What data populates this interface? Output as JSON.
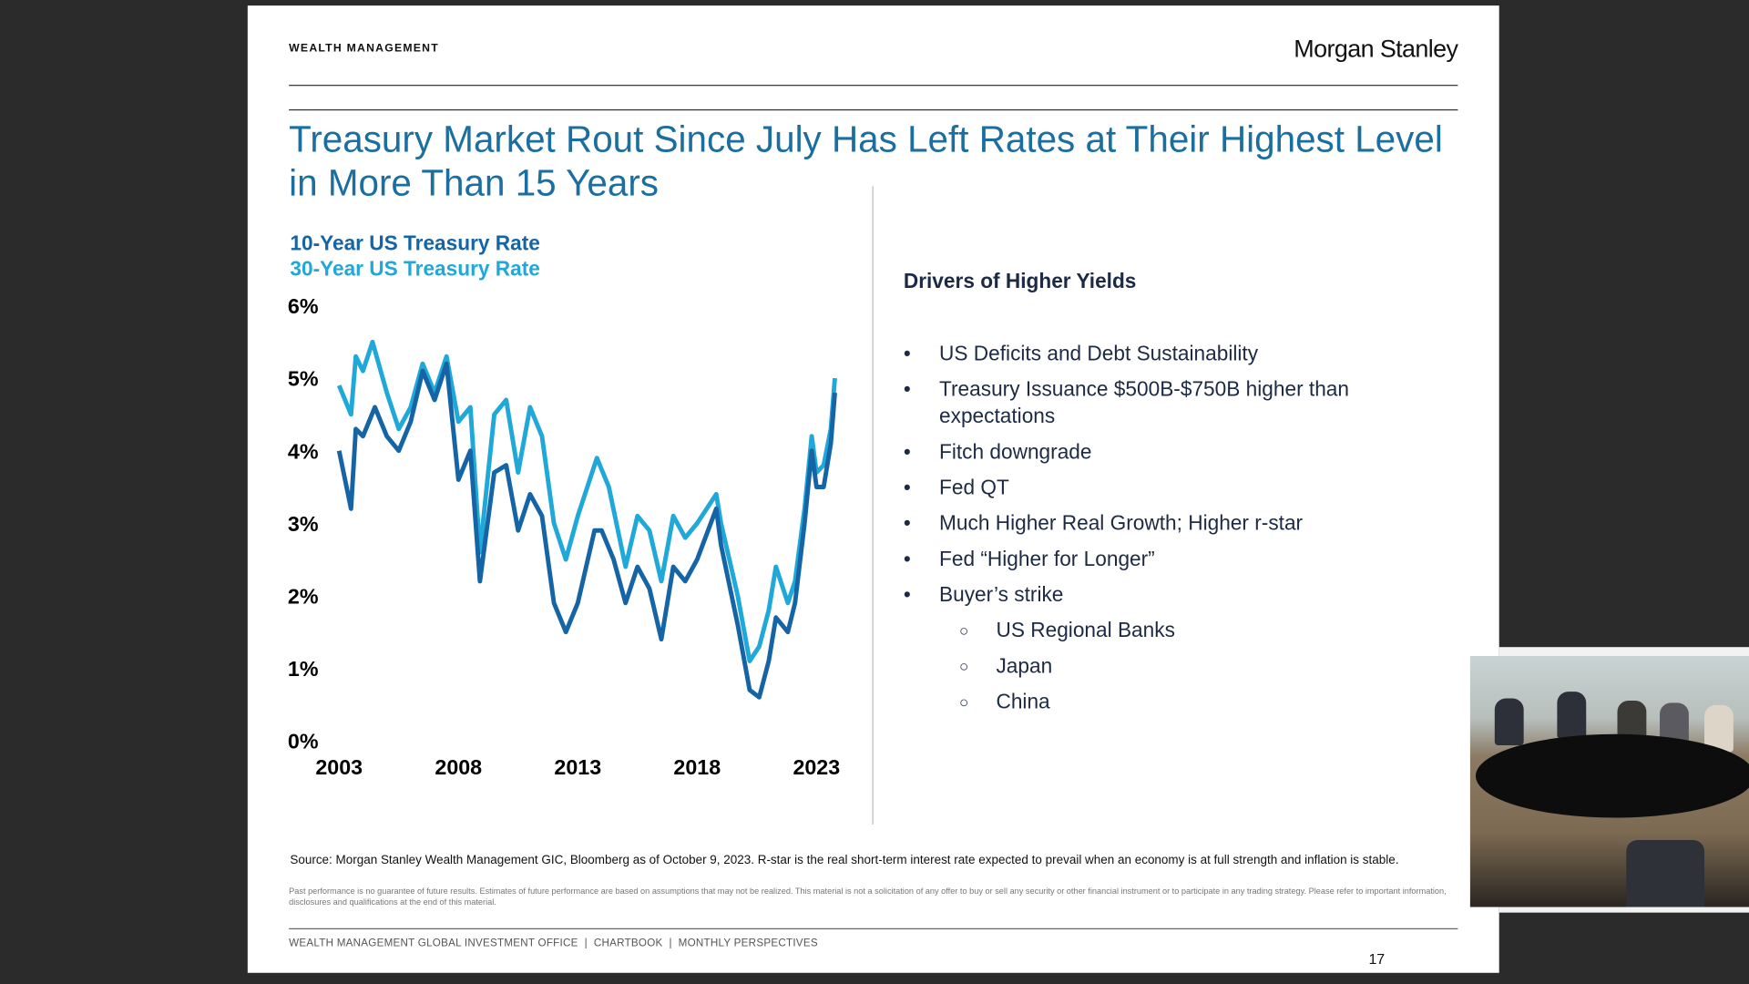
{
  "header": {
    "wealth_management": "WEALTH MANAGEMENT",
    "logo": "Morgan Stanley"
  },
  "title": "Treasury Market Rout Since July Has Left Rates at Their Highest Level in More Than 15 Years",
  "chart_data": {
    "type": "line",
    "title": "",
    "legend": [
      "10-Year US Treasury Rate",
      "30-Year US Treasury Rate"
    ],
    "legend_placement": "top-left",
    "colors": {
      "10y": "#1565a6",
      "30y": "#1fa8d8"
    },
    "y_ticks": [
      "0%",
      "1%",
      "2%",
      "3%",
      "4%",
      "5%",
      "6%"
    ],
    "ylim": [
      0,
      6
    ],
    "x_ticks": [
      "2003",
      "2008",
      "2013",
      "2018",
      "2023"
    ],
    "xlim": [
      2003,
      2023
    ],
    "grid": false,
    "series": [
      {
        "name": "10-Year US Treasury Rate",
        "x": [
          2003.0,
          2003.5,
          2003.7,
          2004.0,
          2004.5,
          2005.0,
          2005.5,
          2006.0,
          2006.5,
          2007.0,
          2007.5,
          2008.0,
          2008.5,
          2008.9,
          2009.5,
          2010.0,
          2010.5,
          2011.0,
          2011.5,
          2012.0,
          2012.5,
          2013.0,
          2013.7,
          2014.0,
          2014.5,
          2015.0,
          2015.5,
          2016.0,
          2016.5,
          2017.0,
          2017.5,
          2018.0,
          2018.8,
          2019.0,
          2019.7,
          2020.2,
          2020.6,
          2021.0,
          2021.3,
          2021.8,
          2022.1,
          2022.5,
          2022.8,
          2023.0,
          2023.3,
          2023.6,
          2023.77
        ],
        "y": [
          4.0,
          3.2,
          4.3,
          4.2,
          4.6,
          4.2,
          4.0,
          4.4,
          5.1,
          4.7,
          5.2,
          3.6,
          4.0,
          2.2,
          3.7,
          3.8,
          2.9,
          3.4,
          3.1,
          1.9,
          1.5,
          1.9,
          2.9,
          2.9,
          2.5,
          1.9,
          2.4,
          2.1,
          1.4,
          2.4,
          2.2,
          2.5,
          3.2,
          2.7,
          1.6,
          0.7,
          0.6,
          1.1,
          1.7,
          1.5,
          1.9,
          3.0,
          4.0,
          3.5,
          3.5,
          4.1,
          4.8
        ]
      },
      {
        "name": "30-Year US Treasury Rate",
        "x": [
          2003.0,
          2003.5,
          2003.7,
          2004.0,
          2004.4,
          2005.0,
          2005.5,
          2006.0,
          2006.5,
          2007.0,
          2007.5,
          2008.0,
          2008.5,
          2008.9,
          2009.5,
          2010.0,
          2010.5,
          2011.0,
          2011.5,
          2012.0,
          2012.5,
          2013.0,
          2013.8,
          2014.3,
          2015.0,
          2015.5,
          2016.0,
          2016.5,
          2017.0,
          2017.5,
          2018.0,
          2018.8,
          2019.0,
          2019.7,
          2020.2,
          2020.6,
          2021.0,
          2021.3,
          2021.8,
          2022.1,
          2022.5,
          2022.8,
          2023.0,
          2023.3,
          2023.6,
          2023.77
        ],
        "y": [
          4.9,
          4.5,
          5.3,
          5.1,
          5.5,
          4.8,
          4.3,
          4.6,
          5.2,
          4.8,
          5.3,
          4.4,
          4.6,
          2.6,
          4.5,
          4.7,
          3.7,
          4.6,
          4.2,
          3.0,
          2.5,
          3.1,
          3.9,
          3.5,
          2.4,
          3.1,
          2.9,
          2.2,
          3.1,
          2.8,
          3.0,
          3.4,
          3.0,
          2.0,
          1.1,
          1.3,
          1.8,
          2.4,
          1.9,
          2.2,
          3.2,
          4.2,
          3.7,
          3.8,
          4.3,
          5.0
        ]
      }
    ]
  },
  "drivers": {
    "heading": "Drivers of Higher Yields",
    "items": [
      "US Deficits and Debt Sustainability",
      "Treasury Issuance $500B-$750B higher than expectations",
      "Fitch downgrade",
      "Fed QT",
      "Much Higher Real Growth; Higher r-star",
      "Fed “Higher for Longer”",
      "Buyer’s strike"
    ],
    "sub_items": [
      "US Regional Banks",
      "Japan",
      "China"
    ],
    "bullet": "•",
    "sub_bullet": "○"
  },
  "source": "Source: Morgan Stanley Wealth Management GIC, Bloomberg as of October 9, 2023. R-star is the real short-term interest rate expected to prevail when an economy is at full strength and inflation is stable.",
  "disclaimer": "Past performance is no guarantee of future results. Estimates of future performance are based on assumptions that may not be realized. This material is not a solicitation of any offer to buy or sell any security or other financial instrument or to participate in any trading strategy. Please refer to important information, disclosures and qualifications at the end of this material.",
  "footer": {
    "text": "WEALTH MANAGEMENT GLOBAL INVESTMENT OFFICE  |  CHARTBOOK  |  MONTHLY PERSPECTIVES",
    "page": "17"
  }
}
